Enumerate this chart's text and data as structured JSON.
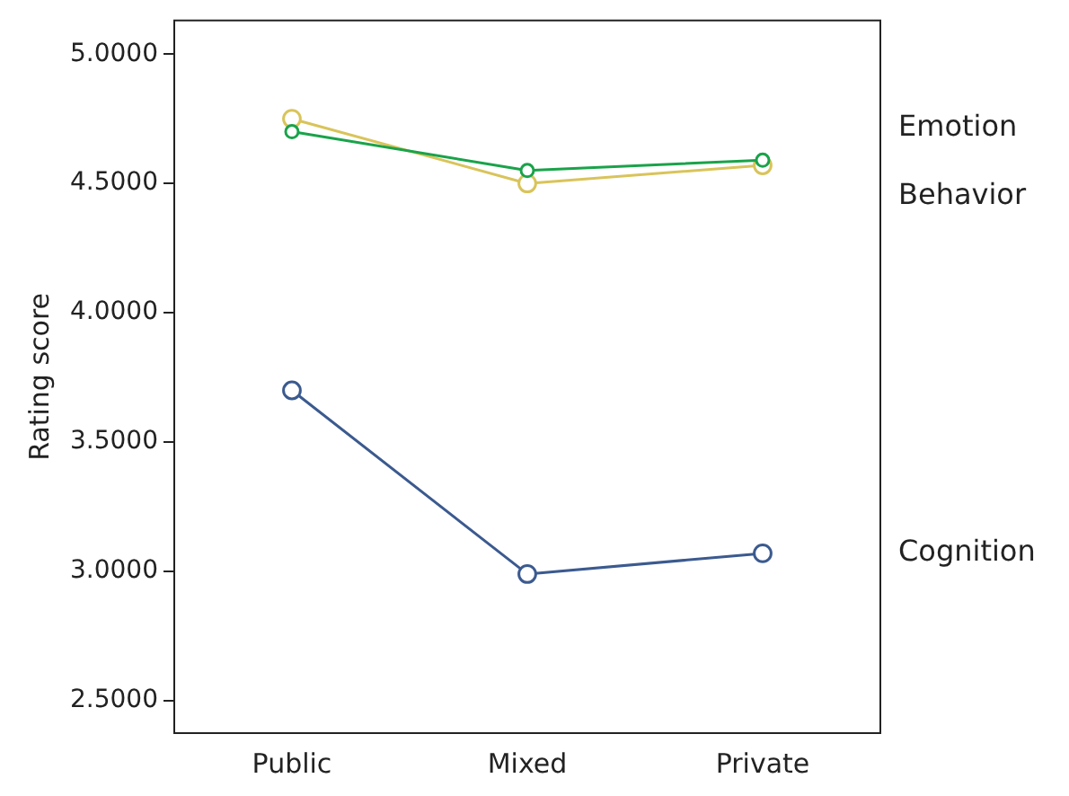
{
  "chart_data": {
    "type": "line",
    "ylabel": "Rating score",
    "categories": [
      "Public",
      "Mixed",
      "Private"
    ],
    "series": [
      {
        "name": "Emotion",
        "color": "#1aa34a",
        "values": [
          4.7,
          4.55,
          4.59
        ]
      },
      {
        "name": "Behavior",
        "color": "#d9c45a",
        "values": [
          4.75,
          4.5,
          4.57
        ]
      },
      {
        "name": "Cognition",
        "color": "#3b5a8f",
        "values": [
          3.7,
          2.99,
          3.07
        ]
      }
    ],
    "ylim": [
      2.375,
      5.13
    ],
    "yticks": [
      {
        "value": 2.5,
        "label": "2.5000"
      },
      {
        "value": 3,
        "label": "3.0000"
      },
      {
        "value": 3.5,
        "label": "3.5000"
      },
      {
        "value": 4,
        "label": "4.0000"
      },
      {
        "value": 4.5,
        "label": "4.5000"
      },
      {
        "value": 5,
        "label": "5.0000"
      }
    ],
    "grid": false,
    "marker": "circle",
    "line_style": "solid"
  }
}
